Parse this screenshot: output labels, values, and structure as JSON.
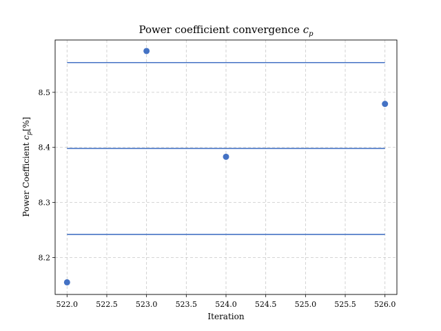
{
  "chart_data": {
    "type": "scatter",
    "title": "Power coefficient convergence c_p",
    "xlabel": "Iteration",
    "ylabel": "Power Coefficient c_p[%]",
    "xlim": [
      521.85,
      526.15
    ],
    "ylim": [
      8.133,
      8.595
    ],
    "xticks": [
      522.0,
      522.5,
      523.0,
      523.5,
      524.0,
      524.5,
      525.0,
      525.5,
      526.0
    ],
    "xtick_labels": [
      "522.0",
      "522.5",
      "523.0",
      "523.5",
      "524.0",
      "524.5",
      "525.0",
      "525.5",
      "526.0"
    ],
    "yticks": [
      8.2,
      8.3,
      8.4,
      8.5
    ],
    "ytick_labels": [
      "8.2",
      "8.3",
      "8.4",
      "8.5"
    ],
    "grid": true,
    "points": {
      "x": [
        522,
        523,
        524,
        526
      ],
      "y": [
        8.155,
        8.575,
        8.383,
        8.479
      ]
    },
    "hlines": [
      {
        "y": 8.554,
        "xmin": 522,
        "xmax": 526
      },
      {
        "y": 8.398,
        "xmin": 522,
        "xmax": 526
      },
      {
        "y": 8.242,
        "xmin": 522,
        "xmax": 526
      }
    ],
    "color": "#4472c4"
  }
}
